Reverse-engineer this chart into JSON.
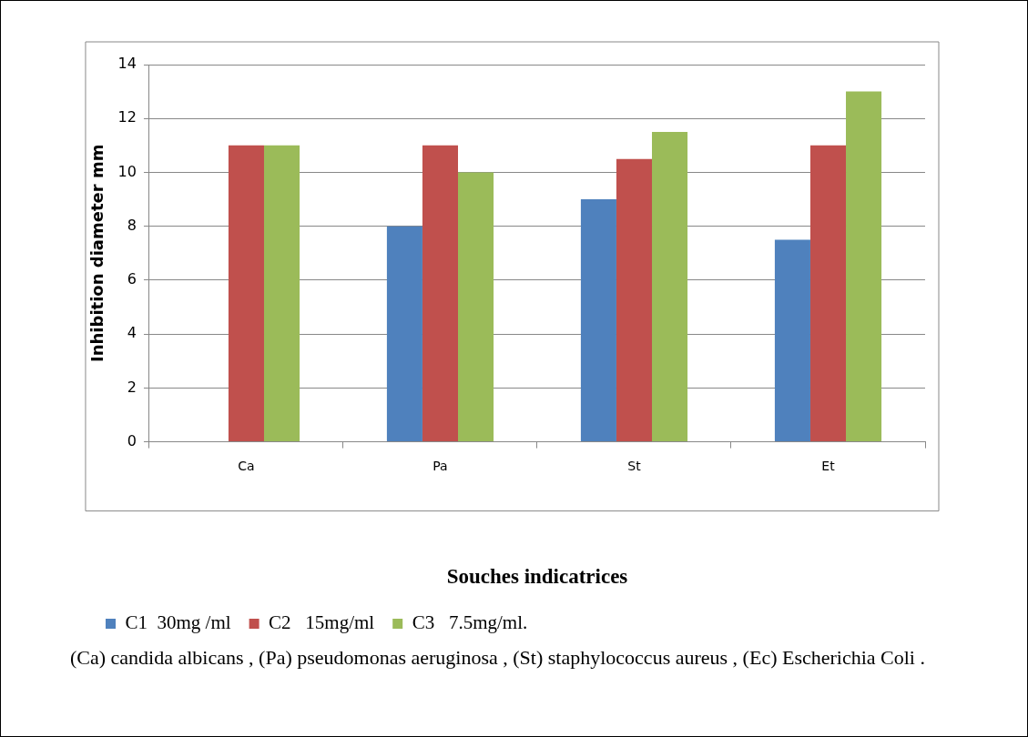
{
  "chart_data": {
    "type": "bar",
    "xlabel": "Souches indicatrices",
    "ylabel": "Inhibition diameter mm",
    "categories": [
      "Ca",
      "Pa",
      "St",
      "Et"
    ],
    "series": [
      {
        "name": "C1  30mg /ml",
        "color": "#4f81bd",
        "values": [
          0,
          8,
          9,
          7.5
        ]
      },
      {
        "name": "C2   15mg/ml",
        "color": "#c0504d",
        "values": [
          11,
          11,
          10.5,
          11
        ]
      },
      {
        "name": "C3   7.5mg/ml.",
        "color": "#9bbb59",
        "values": [
          11,
          10,
          11.5,
          13
        ]
      }
    ],
    "ylim": [
      0,
      14
    ],
    "yticks": [
      0,
      2,
      4,
      6,
      8,
      10,
      12,
      14
    ],
    "grid": "y",
    "legend": "bottom",
    "annotations": [
      "(Ca) candida albicans , (Pa) pseudomonas aeruginosa , (St) staphylococcus aureus ,  (Ec) Escherichia Coli ."
    ]
  }
}
